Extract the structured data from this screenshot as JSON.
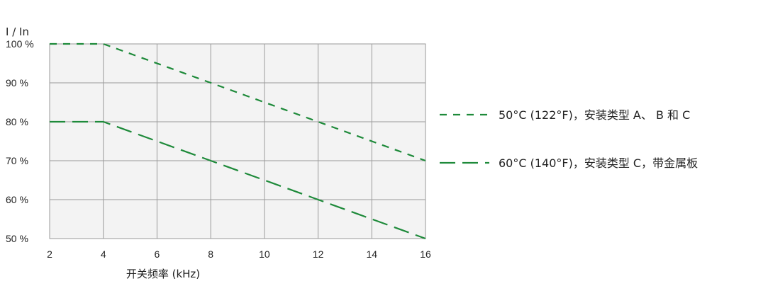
{
  "chart_data": {
    "type": "line",
    "ylabel": "I / In",
    "xlabel": "开关频率 (kHz)",
    "xlim": [
      2,
      16
    ],
    "ylim": [
      50,
      100
    ],
    "x_ticks": [
      "2",
      "4",
      "6",
      "8",
      "10",
      "12",
      "14",
      "16"
    ],
    "y_ticks": [
      "100 %",
      "90 %",
      "80 %",
      "70 %",
      "60 %",
      "50 %"
    ],
    "grid": true,
    "legend_position": "right",
    "line_color": "#1e8a3a",
    "series": [
      {
        "name": "50°C (122°F)，安装类型 A、 B 和 C",
        "dash": "short",
        "x": [
          2,
          4,
          16
        ],
        "y": [
          100,
          100,
          70
        ]
      },
      {
        "name": "60°C (140°F)，安装类型 C，带金属板",
        "dash": "long",
        "x": [
          2,
          4,
          16
        ],
        "y": [
          80,
          80,
          50
        ]
      }
    ]
  }
}
